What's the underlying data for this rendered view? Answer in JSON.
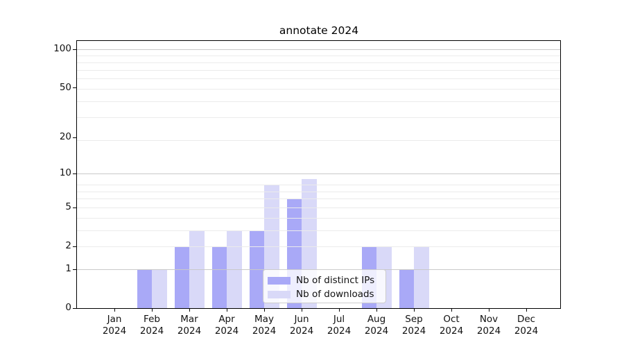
{
  "chart_data": {
    "type": "bar",
    "title": "annotate 2024",
    "categories": [
      "Jan",
      "Feb",
      "Mar",
      "Apr",
      "May",
      "Jun",
      "Jul",
      "Aug",
      "Sep",
      "Oct",
      "Nov",
      "Dec"
    ],
    "category_year": "2024",
    "series": [
      {
        "name": "Nb of distinct IPs",
        "color": "#a9a9f7",
        "values": [
          0,
          1,
          2,
          2,
          3,
          6,
          0,
          2,
          1,
          0,
          0,
          0
        ]
      },
      {
        "name": "Nb of downloads",
        "color": "#d9d9f8",
        "values": [
          0,
          1,
          3,
          3,
          8,
          9,
          0,
          2,
          2,
          0,
          0,
          0
        ]
      }
    ],
    "y_scale": "log10(1+x)",
    "y_ticks": [
      0,
      1,
      2,
      5,
      10,
      20,
      50,
      100
    ],
    "grid_major_values": [
      1,
      10,
      100
    ],
    "grid_minor_values": [
      2,
      3,
      4,
      5,
      6,
      7,
      8,
      19,
      29,
      39,
      49,
      59,
      69,
      79,
      89
    ],
    "ylim": [
      0,
      118
    ],
    "grid": true,
    "legend_position": "lower-center"
  },
  "colors": {
    "grid_major": "#c9c9c9",
    "grid_minor": "#ebebeb",
    "spine": "#000000",
    "legend_border": "#cccccc",
    "text": "#111111"
  }
}
